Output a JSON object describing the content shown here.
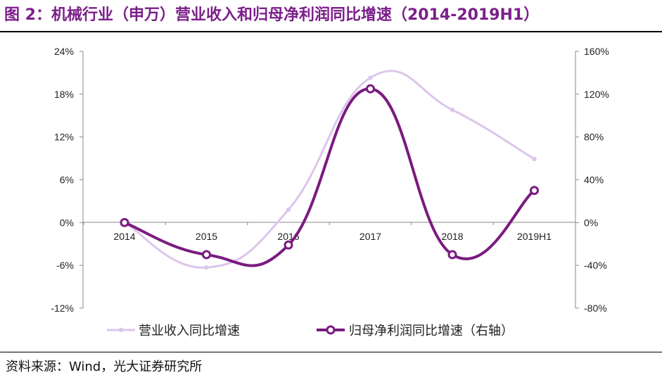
{
  "title": "图 2：机械行业（申万）营业收入和归母净利润同比增速（2014-2019H1）",
  "source": "资料来源：Wind，光大证券研究所",
  "colors": {
    "title": "#7b1f8a",
    "light_series": "#dcc6ec",
    "dark_series": "#7a1b80"
  },
  "chart_data": {
    "type": "line",
    "x": [
      "2014",
      "2015",
      "2016",
      "2017",
      "2018",
      "2019H1"
    ],
    "series": [
      {
        "name": "营业收入同比增速",
        "axis": "left",
        "values": [
          0.0,
          -6.3,
          1.8,
          20.3,
          15.8,
          8.9
        ]
      },
      {
        "name": "归母净利润同比增速（右轴）",
        "axis": "right",
        "values": [
          0.0,
          -30.0,
          -21.0,
          125.0,
          -30.0,
          30.0
        ]
      }
    ],
    "left_axis": {
      "ticks": [
        "24%",
        "18%",
        "12%",
        "6%",
        "0%",
        "-6%",
        "-12%"
      ],
      "ylim": [
        -12,
        24
      ]
    },
    "right_axis": {
      "ticks": [
        "160%",
        "120%",
        "80%",
        "40%",
        "0%",
        "-40%",
        "-80%"
      ],
      "ylim": [
        -80,
        160
      ]
    },
    "legend_position": "bottom",
    "grid": false
  }
}
